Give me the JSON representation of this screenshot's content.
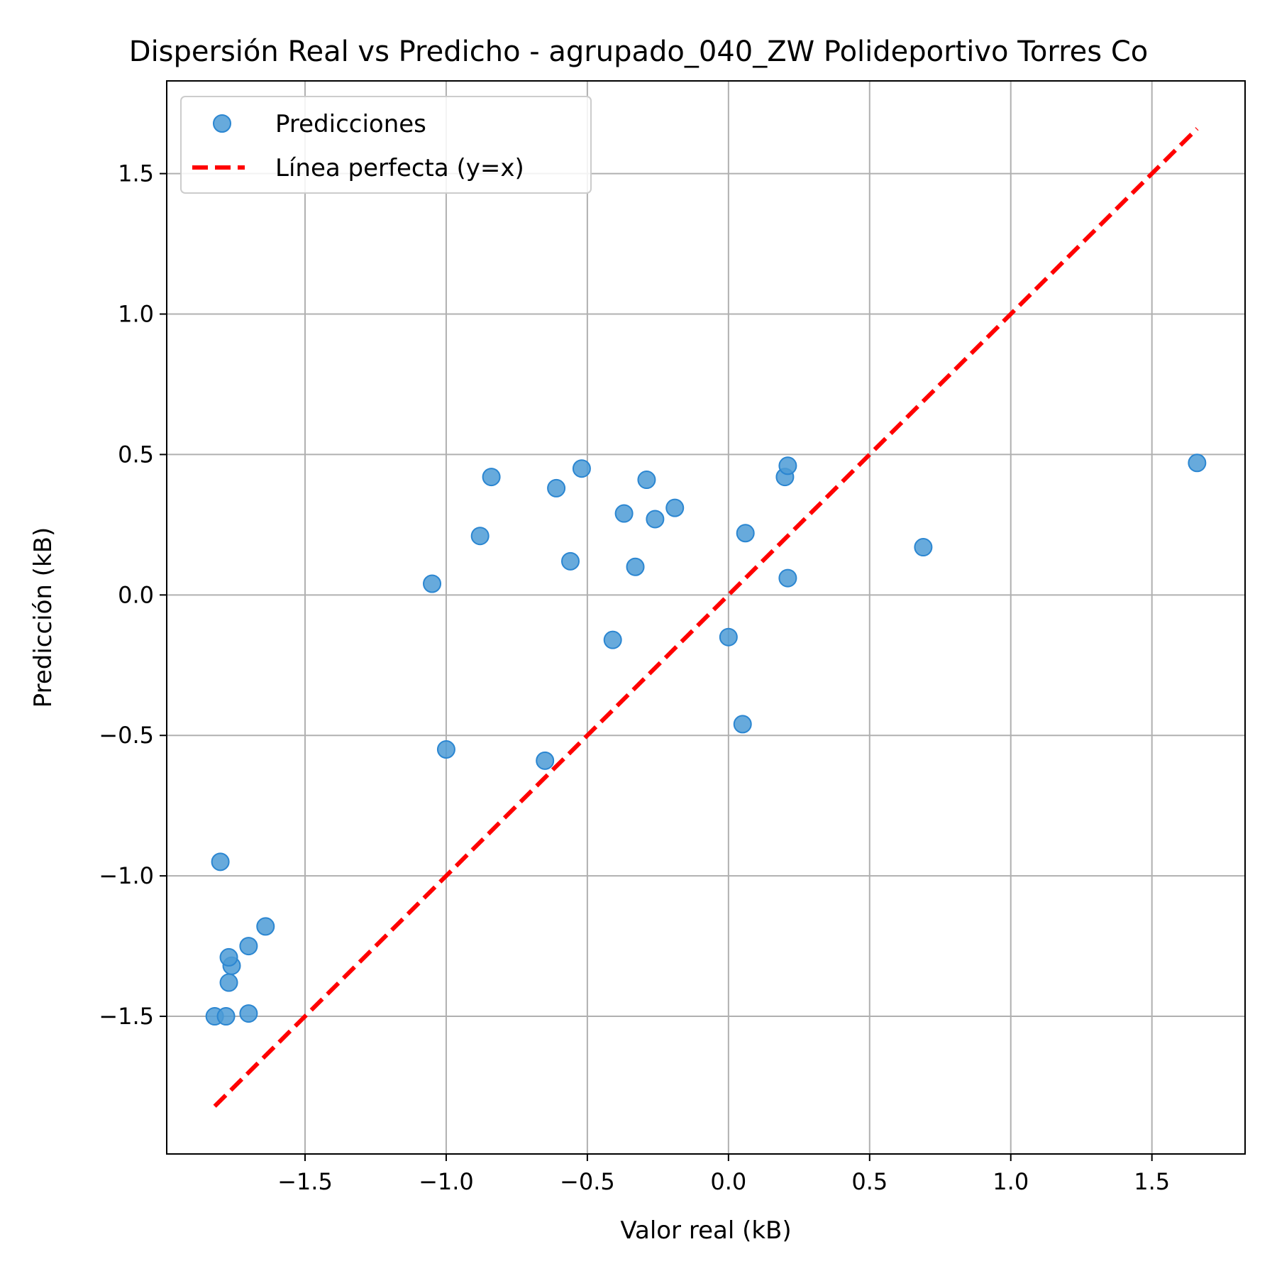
{
  "chart_data": {
    "type": "scatter",
    "title": "Dispersión Real vs Predicho - agrupado_040_ZW Polideportivo Torres Co",
    "xlabel": "Valor real (kB)",
    "ylabel": "Predicción (kB)",
    "xlim": [
      -1.99,
      1.83
    ],
    "ylim": [
      -1.99,
      1.83
    ],
    "xticks": [
      -1.5,
      -1.0,
      -0.5,
      0.0,
      0.5,
      1.0,
      1.5
    ],
    "xtick_labels": [
      "−1.5",
      "−1.0",
      "−0.5",
      "0.0",
      "0.5",
      "1.0",
      "1.5"
    ],
    "yticks": [
      -1.5,
      -1.0,
      -0.5,
      0.0,
      0.5,
      1.0,
      1.5
    ],
    "ytick_labels": [
      "−1.5",
      "−1.0",
      "−0.5",
      "0.0",
      "0.5",
      "1.0",
      "1.5"
    ],
    "grid": true,
    "legend_position": "top-left",
    "series": [
      {
        "name": "Predicciones",
        "kind": "scatter",
        "color": "#4C9BD6",
        "edge_color": "#2B86D1",
        "points": [
          {
            "x": -1.82,
            "y": -1.5
          },
          {
            "x": -1.78,
            "y": -1.5
          },
          {
            "x": -1.7,
            "y": -1.49
          },
          {
            "x": -1.77,
            "y": -1.38
          },
          {
            "x": -1.76,
            "y": -1.32
          },
          {
            "x": -1.77,
            "y": -1.29
          },
          {
            "x": -1.7,
            "y": -1.25
          },
          {
            "x": -1.64,
            "y": -1.18
          },
          {
            "x": -1.8,
            "y": -0.95
          },
          {
            "x": -1.05,
            "y": 0.04
          },
          {
            "x": -1.0,
            "y": -0.55
          },
          {
            "x": -0.88,
            "y": 0.21
          },
          {
            "x": -0.84,
            "y": 0.42
          },
          {
            "x": -0.65,
            "y": -0.59
          },
          {
            "x": -0.61,
            "y": 0.38
          },
          {
            "x": -0.56,
            "y": 0.12
          },
          {
            "x": -0.52,
            "y": 0.45
          },
          {
            "x": -0.41,
            "y": -0.16
          },
          {
            "x": -0.37,
            "y": 0.29
          },
          {
            "x": -0.33,
            "y": 0.1
          },
          {
            "x": -0.29,
            "y": 0.41
          },
          {
            "x": -0.26,
            "y": 0.27
          },
          {
            "x": -0.19,
            "y": 0.31
          },
          {
            "x": 0.0,
            "y": -0.15
          },
          {
            "x": 0.05,
            "y": -0.46
          },
          {
            "x": 0.06,
            "y": 0.22
          },
          {
            "x": 0.2,
            "y": 0.42
          },
          {
            "x": 0.21,
            "y": 0.46
          },
          {
            "x": 0.21,
            "y": 0.06
          },
          {
            "x": 0.69,
            "y": 0.17
          },
          {
            "x": 1.66,
            "y": 0.47
          }
        ]
      },
      {
        "name": "Línea perfecta (y=x)",
        "kind": "line",
        "color": "#FF0000",
        "line_style": "dashed",
        "points": [
          {
            "x": -1.82,
            "y": -1.82
          },
          {
            "x": 1.66,
            "y": 1.66
          }
        ]
      }
    ]
  }
}
